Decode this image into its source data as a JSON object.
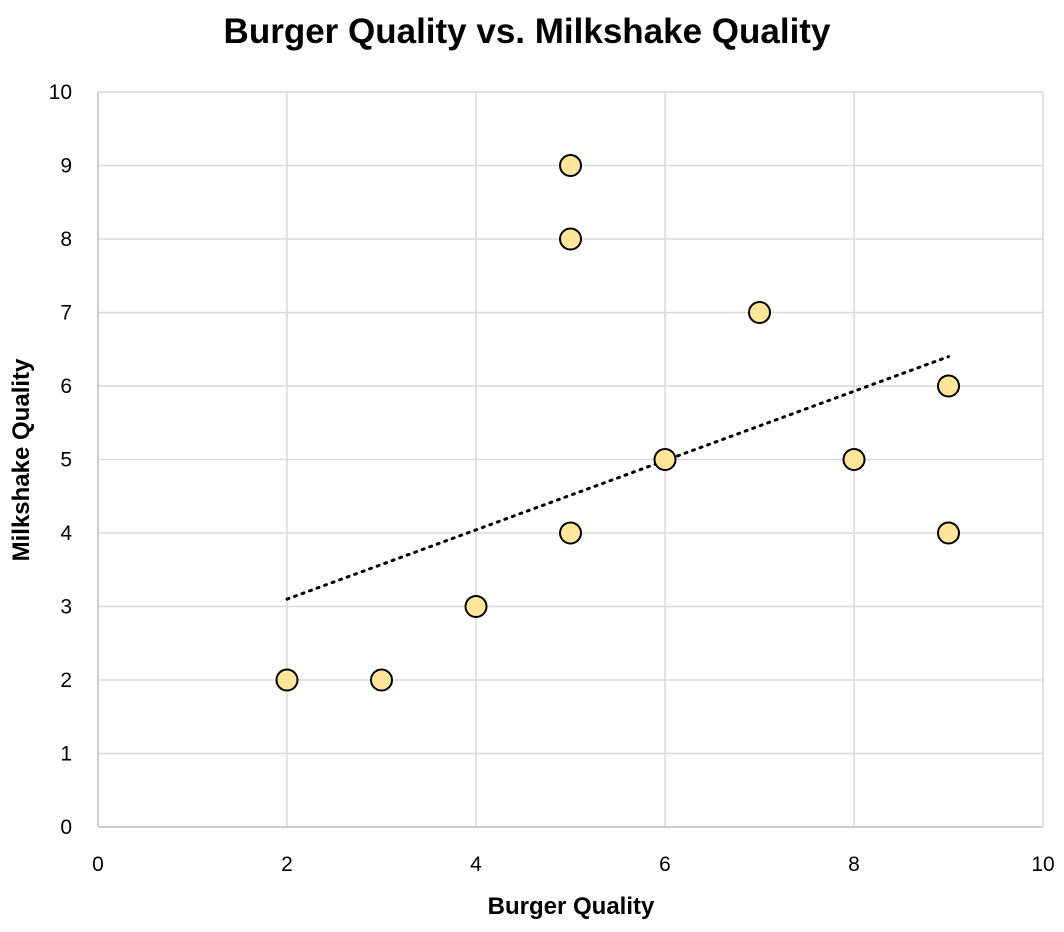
{
  "chart_data": {
    "type": "scatter",
    "title": "Burger Quality vs. Milkshake Quality",
    "xlabel": "Burger Quality",
    "ylabel": "Milkshake Quality",
    "xlim": [
      0,
      10
    ],
    "ylim": [
      0,
      10
    ],
    "x_ticks": [
      "0",
      "2",
      "4",
      "6",
      "8",
      "10"
    ],
    "y_ticks": [
      "0",
      "1",
      "2",
      "3",
      "4",
      "5",
      "6",
      "7",
      "8",
      "9",
      "10"
    ],
    "grid": true,
    "legend": "none",
    "series": [
      {
        "x": [
          2,
          3,
          4,
          5,
          5,
          5,
          6,
          7,
          8,
          9,
          9
        ],
        "y": [
          2,
          2,
          3,
          4,
          8,
          9,
          5,
          7,
          5,
          6,
          4
        ]
      }
    ],
    "trendline": {
      "type": "linear",
      "x_range": [
        2,
        9
      ],
      "y_values": [
        3.1,
        6.4
      ]
    },
    "colors": {
      "marker_fill": "#ffe699",
      "marker_edge": "#000000",
      "trendline": "#000000",
      "grid": "#d9d9d9"
    }
  }
}
